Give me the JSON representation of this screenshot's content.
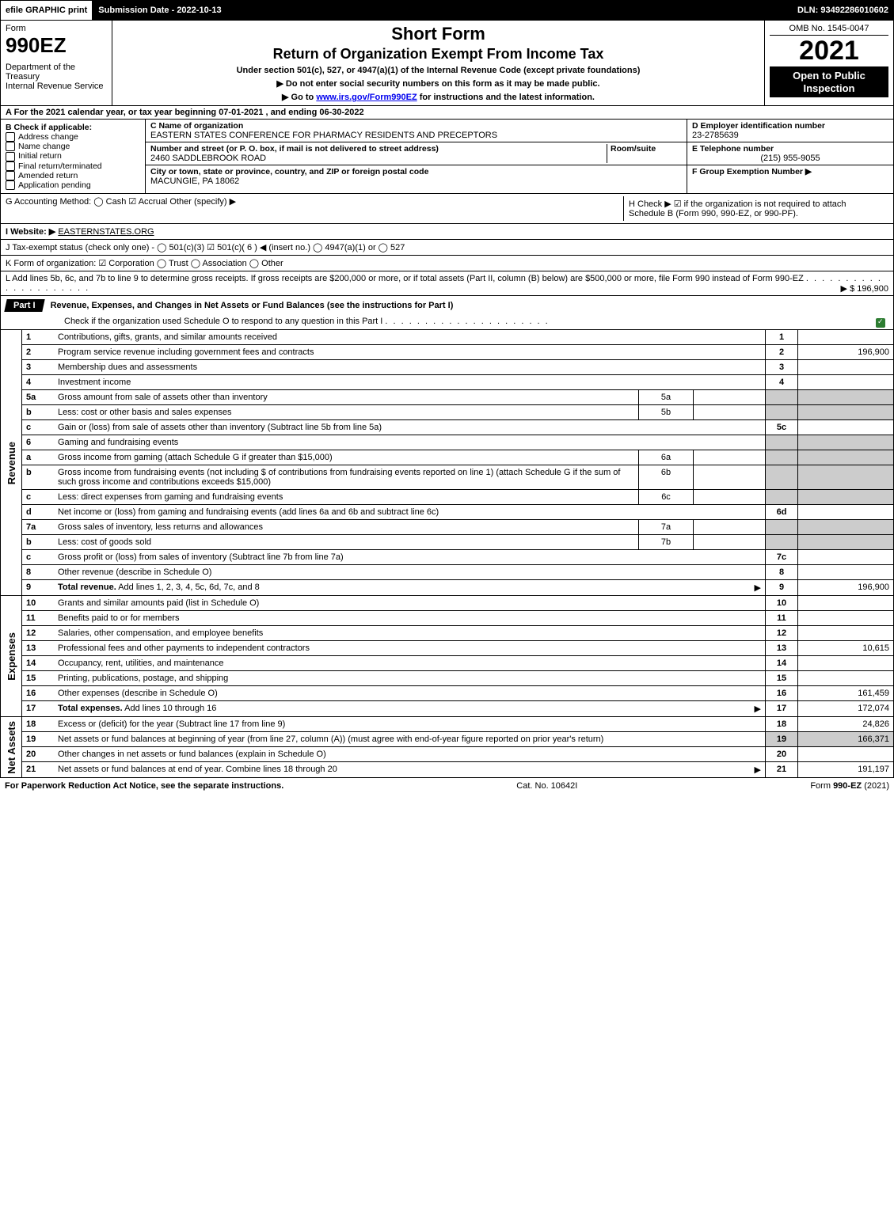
{
  "topbar": {
    "efile": "efile GRAPHIC print",
    "submission": "Submission Date - 2022-10-13",
    "dln": "DLN: 93492286010602"
  },
  "header": {
    "form_label": "Form",
    "form_no": "990EZ",
    "dept": "Department of the Treasury\nInternal Revenue Service",
    "title1": "Short Form",
    "title2": "Return of Organization Exempt From Income Tax",
    "subtitle": "Under section 501(c), 527, or 4947(a)(1) of the Internal Revenue Code (except private foundations)",
    "note1": "▶ Do not enter social security numbers on this form as it may be made public.",
    "note2": "▶ Go to www.irs.gov/Form990EZ for instructions and the latest information.",
    "omb": "OMB No. 1545-0047",
    "year": "2021",
    "badge": "Open to Public Inspection"
  },
  "A": "A  For the 2021 calendar year, or tax year beginning 07-01-2021 , and ending 06-30-2022",
  "B": {
    "label": "B  Check if applicable:",
    "opts": [
      "Address change",
      "Name change",
      "Initial return",
      "Final return/terminated",
      "Amended return",
      "Application pending"
    ]
  },
  "C": {
    "name_lbl": "C Name of organization",
    "name": "EASTERN STATES CONFERENCE FOR PHARMACY RESIDENTS AND PRECEPTORS",
    "addr_lbl": "Number and street (or P. O. box, if mail is not delivered to street address)",
    "room_lbl": "Room/suite",
    "addr": "2460 SADDLEBROOK ROAD",
    "city_lbl": "City or town, state or province, country, and ZIP or foreign postal code",
    "city": "MACUNGIE, PA  18062"
  },
  "D": {
    "lbl": "D Employer identification number",
    "val": "23-2785639"
  },
  "E": {
    "lbl": "E Telephone number",
    "val": "(215) 955-9055"
  },
  "F": {
    "lbl": "F Group Exemption Number  ▶"
  },
  "G": "G Accounting Method:   ◯ Cash   ☑ Accrual   Other (specify) ▶",
  "H": "H  Check ▶ ☑ if the organization is not required to attach Schedule B (Form 990, 990-EZ, or 990-PF).",
  "I": {
    "lbl": "I Website: ▶",
    "val": "EASTERNSTATES.ORG"
  },
  "J": "J Tax-exempt status (check only one) - ◯ 501(c)(3)  ☑ 501(c)( 6 ) ◀ (insert no.)  ◯ 4947(a)(1) or  ◯ 527",
  "K": "K Form of organization:  ☑ Corporation  ◯ Trust  ◯ Association  ◯ Other",
  "L": {
    "text": "L Add lines 5b, 6c, and 7b to line 9 to determine gross receipts. If gross receipts are $200,000 or more, or if total assets (Part II, column (B) below) are $500,000 or more, file Form 990 instead of Form 990-EZ",
    "amount": "▶ $ 196,900"
  },
  "part1": {
    "tab": "Part I",
    "title": "Revenue, Expenses, and Changes in Net Assets or Fund Balances (see the instructions for Part I)",
    "check": "Check if the organization used Schedule O to respond to any question in this Part I"
  },
  "revenue_rows": [
    {
      "n": "1",
      "d": "Contributions, gifts, grants, and similar amounts received",
      "rn": "1",
      "rv": ""
    },
    {
      "n": "2",
      "d": "Program service revenue including government fees and contracts",
      "rn": "2",
      "rv": "196,900"
    },
    {
      "n": "3",
      "d": "Membership dues and assessments",
      "rn": "3",
      "rv": ""
    },
    {
      "n": "4",
      "d": "Investment income",
      "rn": "4",
      "rv": ""
    },
    {
      "n": "5a",
      "d": "Gross amount from sale of assets other than inventory",
      "mid": "5a",
      "gray": true
    },
    {
      "n": "b",
      "d": "Less: cost or other basis and sales expenses",
      "mid": "5b",
      "gray": true
    },
    {
      "n": "c",
      "d": "Gain or (loss) from sale of assets other than inventory (Subtract line 5b from line 5a)",
      "rn": "5c",
      "rv": ""
    },
    {
      "n": "6",
      "d": "Gaming and fundraising events",
      "gray": true,
      "nornum": true
    },
    {
      "n": "a",
      "d": "Gross income from gaming (attach Schedule G if greater than $15,000)",
      "mid": "6a",
      "gray": true
    },
    {
      "n": "b",
      "d": "Gross income from fundraising events (not including $                      of contributions from fundraising events reported on line 1) (attach Schedule G if the sum of such gross income and contributions exceeds $15,000)",
      "mid": "6b",
      "gray": true
    },
    {
      "n": "c",
      "d": "Less: direct expenses from gaming and fundraising events",
      "mid": "6c",
      "gray": true
    },
    {
      "n": "d",
      "d": "Net income or (loss) from gaming and fundraising events (add lines 6a and 6b and subtract line 6c)",
      "rn": "6d",
      "rv": ""
    },
    {
      "n": "7a",
      "d": "Gross sales of inventory, less returns and allowances",
      "mid": "7a",
      "gray": true
    },
    {
      "n": "b",
      "d": "Less: cost of goods sold",
      "mid": "7b",
      "gray": true
    },
    {
      "n": "c",
      "d": "Gross profit or (loss) from sales of inventory (Subtract line 7b from line 7a)",
      "rn": "7c",
      "rv": ""
    },
    {
      "n": "8",
      "d": "Other revenue (describe in Schedule O)",
      "rn": "8",
      "rv": ""
    },
    {
      "n": "9",
      "d": "Total revenue. Add lines 1, 2, 3, 4, 5c, 6d, 7c, and 8",
      "rn": "9",
      "rv": "196,900",
      "arrow": true,
      "bold": true
    }
  ],
  "expense_rows": [
    {
      "n": "10",
      "d": "Grants and similar amounts paid (list in Schedule O)",
      "rn": "10",
      "rv": ""
    },
    {
      "n": "11",
      "d": "Benefits paid to or for members",
      "rn": "11",
      "rv": ""
    },
    {
      "n": "12",
      "d": "Salaries, other compensation, and employee benefits",
      "rn": "12",
      "rv": ""
    },
    {
      "n": "13",
      "d": "Professional fees and other payments to independent contractors",
      "rn": "13",
      "rv": "10,615"
    },
    {
      "n": "14",
      "d": "Occupancy, rent, utilities, and maintenance",
      "rn": "14",
      "rv": ""
    },
    {
      "n": "15",
      "d": "Printing, publications, postage, and shipping",
      "rn": "15",
      "rv": ""
    },
    {
      "n": "16",
      "d": "Other expenses (describe in Schedule O)",
      "rn": "16",
      "rv": "161,459"
    },
    {
      "n": "17",
      "d": "Total expenses. Add lines 10 through 16",
      "rn": "17",
      "rv": "172,074",
      "arrow": true,
      "bold": true
    }
  ],
  "netasset_rows": [
    {
      "n": "18",
      "d": "Excess or (deficit) for the year (Subtract line 17 from line 9)",
      "rn": "18",
      "rv": "24,826"
    },
    {
      "n": "19",
      "d": "Net assets or fund balances at beginning of year (from line 27, column (A)) (must agree with end-of-year figure reported on prior year's return)",
      "rn": "19",
      "rv": "166,371",
      "gray": true
    },
    {
      "n": "20",
      "d": "Other changes in net assets or fund balances (explain in Schedule O)",
      "rn": "20",
      "rv": ""
    },
    {
      "n": "21",
      "d": "Net assets or fund balances at end of year. Combine lines 18 through 20",
      "rn": "21",
      "rv": "191,197",
      "arrow": true
    }
  ],
  "vtabs": {
    "rev": "Revenue",
    "exp": "Expenses",
    "net": "Net Assets"
  },
  "footer": {
    "l": "For Paperwork Reduction Act Notice, see the separate instructions.",
    "m": "Cat. No. 10642I",
    "r": "Form 990-EZ (2021)"
  }
}
